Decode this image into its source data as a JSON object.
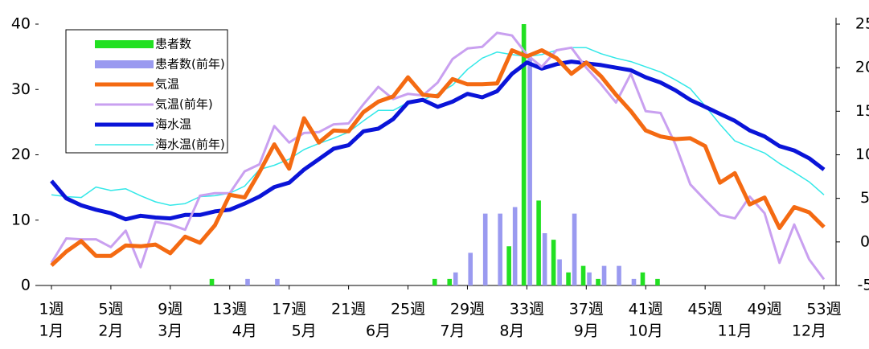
{
  "chart_data": {
    "type": "combo",
    "categories": [
      "1週",
      null,
      null,
      null,
      "5週",
      null,
      null,
      null,
      "9週",
      null,
      null,
      null,
      "13週",
      null,
      null,
      null,
      "17週",
      null,
      null,
      null,
      "21週",
      null,
      null,
      null,
      "25週",
      null,
      null,
      null,
      "29週",
      null,
      null,
      null,
      "33週",
      null,
      null,
      null,
      "37週",
      null,
      null,
      null,
      "41週",
      null,
      null,
      null,
      "45週",
      null,
      null,
      null,
      "49週",
      null,
      null,
      null,
      "53週"
    ],
    "month_labels": [
      "1月",
      null,
      null,
      null,
      "2月",
      null,
      null,
      null,
      "3月",
      null,
      null,
      null,
      null,
      "4月",
      null,
      null,
      null,
      "5月",
      null,
      null,
      null,
      null,
      "6月",
      null,
      null,
      null,
      null,
      "7月",
      null,
      null,
      null,
      "8月",
      null,
      null,
      null,
      null,
      "9月",
      null,
      null,
      null,
      "10月",
      null,
      null,
      null,
      null,
      null,
      "11月",
      null,
      null,
      null,
      null,
      "12月",
      null
    ],
    "ylim": [
      0,
      40
    ],
    "yticks": [
      0,
      10,
      20,
      30,
      40
    ],
    "y2lim": [
      -5,
      25
    ],
    "y2ticks": [
      -5,
      0,
      5,
      10,
      15,
      20,
      25
    ],
    "legend": "upper left",
    "series": [
      {
        "name": "患者数",
        "type": "bar",
        "axis": "y",
        "color": "#22e022",
        "values": [
          0,
          0,
          0,
          0,
          0,
          0,
          0,
          0,
          0,
          0,
          0,
          1,
          0,
          0,
          0,
          0,
          0,
          0,
          0,
          0,
          0,
          0,
          0,
          0,
          0,
          0,
          1,
          1,
          0,
          0,
          0,
          6,
          40,
          13,
          7,
          2,
          3,
          1,
          0,
          0,
          2,
          1,
          0,
          0,
          0,
          0,
          0,
          0,
          0,
          0,
          0,
          0,
          0
        ]
      },
      {
        "name": "患者数(前年)",
        "type": "bar",
        "axis": "y",
        "color": "#9a9af0",
        "values": [
          0,
          0,
          0,
          0,
          0,
          0,
          0,
          0,
          0,
          0,
          0,
          0,
          0,
          1,
          0,
          1,
          0,
          0,
          0,
          0,
          0,
          0,
          0,
          0,
          0,
          0,
          0,
          2,
          5,
          11,
          11,
          12,
          35,
          8,
          4,
          11,
          2,
          3,
          3,
          1,
          0,
          0,
          0,
          0,
          0,
          0,
          0,
          0,
          0,
          0,
          0,
          0,
          0
        ]
      },
      {
        "name": "気温",
        "type": "line",
        "axis": "y2",
        "color": "#f46a12",
        "width": 5,
        "values": [
          -2.7,
          -1.1,
          0.1,
          -1.6,
          -1.6,
          -0.4,
          -0.5,
          -0.3,
          -1.3,
          0.6,
          -0.1,
          1.9,
          5.4,
          5.1,
          8,
          11.2,
          8.4,
          14.2,
          11.4,
          12.8,
          12.7,
          14.9,
          16.1,
          16.7,
          18.9,
          16.9,
          16.7,
          18.7,
          18.1,
          18.1,
          18.2,
          22,
          21.3,
          22,
          21.1,
          19.3,
          20.6,
          19,
          16.9,
          15,
          12.8,
          12.1,
          11.8,
          11.9,
          11,
          6.8,
          7.9,
          4.3,
          5.1,
          1.6,
          4,
          3.4,
          1.7
        ]
      },
      {
        "name": "気温(前年)",
        "type": "line",
        "axis": "y2",
        "color": "#c9a0f0",
        "width": 3,
        "values": [
          -2.4,
          0.4,
          0.3,
          0.3,
          -0.6,
          1.3,
          -2.9,
          2.3,
          2,
          1.4,
          5.3,
          5.6,
          5.6,
          8.1,
          8.9,
          13.3,
          11.4,
          12.5,
          12.6,
          13.5,
          13.6,
          15.8,
          17.8,
          16.4,
          17,
          16.8,
          18.3,
          21,
          22.2,
          22.4,
          24,
          23.7,
          21.5,
          20.1,
          22,
          22.3,
          20,
          18.1,
          16,
          19.3,
          15,
          14.8,
          11.2,
          6.6,
          4.8,
          3.1,
          2.7,
          5.2,
          3.3,
          -2.4,
          2,
          -2,
          -4.3
        ]
      },
      {
        "name": "海水温",
        "type": "line",
        "axis": "y2",
        "color": "#0a14d8",
        "width": 5,
        "values": [
          7,
          5,
          4.2,
          3.7,
          3.3,
          2.6,
          3,
          2.8,
          2.7,
          3.1,
          3.1,
          3.5,
          3.7,
          4.4,
          5.2,
          6.3,
          6.8,
          8.3,
          9.5,
          10.7,
          11.1,
          12.7,
          13,
          14.1,
          16,
          16.3,
          15.5,
          16.1,
          17,
          16.6,
          17.3,
          19.3,
          20.6,
          19.9,
          20.4,
          20.7,
          20.5,
          20.3,
          20,
          19.7,
          18.9,
          18.3,
          17.4,
          16.3,
          15.5,
          14.7,
          13.9,
          12.8,
          12.1,
          11,
          10.5,
          9.6,
          8.3
        ]
      },
      {
        "name": "海水温(前年)",
        "type": "line",
        "axis": "y2",
        "color": "#33e8e8",
        "width": 1.5,
        "values": [
          5.4,
          5.2,
          5.1,
          6.3,
          5.9,
          6.1,
          5.3,
          4.6,
          4.2,
          4.4,
          5.2,
          5.3,
          5.6,
          6.4,
          8.3,
          8.8,
          9.5,
          10.6,
          11.3,
          11.9,
          12.6,
          13.9,
          15.1,
          15.1,
          16,
          16.3,
          17,
          18,
          19.8,
          21.1,
          21.8,
          21.5,
          21.3,
          21.5,
          22,
          22.3,
          22.3,
          21.6,
          21.1,
          20.7,
          20.1,
          19.5,
          18.6,
          17.6,
          15.6,
          13.5,
          11.6,
          10.9,
          10.2,
          9,
          8,
          6.9,
          5.4
        ]
      }
    ]
  }
}
